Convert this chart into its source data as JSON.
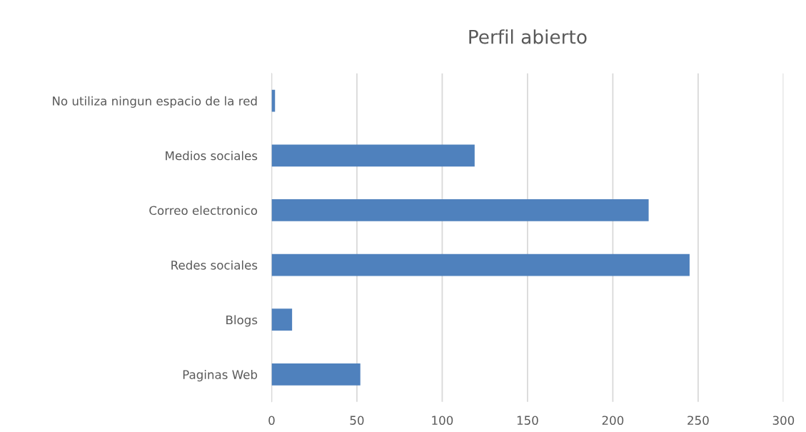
{
  "chart_data": {
    "type": "bar",
    "orientation": "horizontal",
    "title": "Perfil abierto",
    "categories": [
      "No utiliza ningun espacio de la red",
      "Medios sociales",
      "Correo electronico",
      "Redes sociales",
      "Blogs",
      "Paginas Web"
    ],
    "values": [
      2,
      119,
      221,
      245,
      12,
      52
    ],
    "color": "#4f81bd",
    "xlim": [
      0,
      300
    ],
    "xticks": [
      0,
      50,
      100,
      150,
      200,
      250,
      300
    ],
    "grid": "x"
  }
}
